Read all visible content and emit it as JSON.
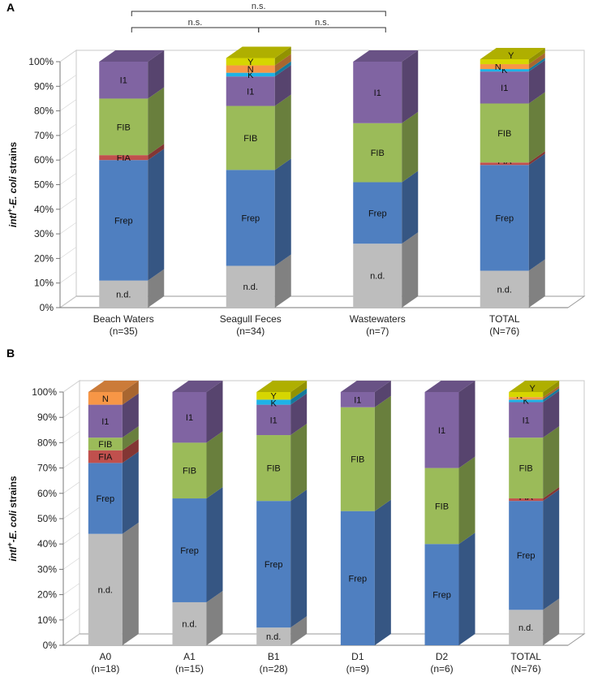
{
  "colors": {
    "n.d.": "#bdbdbd",
    "Frep": "#4f7fc0",
    "FIA": "#c0504d",
    "FIB": "#9bbb59",
    "I1": "#8064a2",
    "K": "#1fb2e6",
    "N": "#f79646",
    "Y": "#d6d600"
  },
  "chart_data": [
    {
      "type": "bar",
      "stacked": true,
      "panel": "A",
      "ylabel_italic_prefix": "intI",
      "ylabel_rest": "+-E. coli strains",
      "ylabel_sup": "+",
      "ylabel_ecoli": "E. coli",
      "ylabel_tail": " strains",
      "ylim": [
        0,
        100
      ],
      "yticks": [
        "0%",
        "10%",
        "20%",
        "30%",
        "40%",
        "50%",
        "60%",
        "70%",
        "80%",
        "90%",
        "100%"
      ],
      "categories": [
        {
          "name": "Beach Waters",
          "n": "(n=35)"
        },
        {
          "name": "Seagull Feces",
          "n": "(n=34)"
        },
        {
          "name": "Wastewaters",
          "n": "(n=7)"
        },
        {
          "name": "TOTAL",
          "n": "(N=76)"
        }
      ],
      "series": [
        {
          "name": "n.d.",
          "values": [
            11,
            17,
            26,
            15
          ]
        },
        {
          "name": "Frep",
          "values": [
            49,
            39,
            25,
            43
          ]
        },
        {
          "name": "FIA",
          "values": [
            2,
            0,
            0,
            1
          ]
        },
        {
          "name": "FIB",
          "values": [
            23,
            26,
            24,
            24
          ]
        },
        {
          "name": "I1",
          "values": [
            15,
            12,
            25,
            13
          ]
        },
        {
          "name": "K",
          "values": [
            0,
            1.5,
            0,
            1
          ]
        },
        {
          "name": "N",
          "values": [
            0,
            3,
            0,
            2
          ]
        },
        {
          "name": "Y",
          "values": [
            0,
            3,
            0,
            2
          ]
        }
      ],
      "significance": [
        {
          "from": 0,
          "to": 2,
          "label": "n.s.",
          "level": 2
        },
        {
          "from": 0,
          "to": 1,
          "label": "n.s.",
          "level": 1
        },
        {
          "from": 1,
          "to": 2,
          "label": "n.s.",
          "level": 1
        }
      ]
    },
    {
      "type": "bar",
      "stacked": true,
      "panel": "B",
      "ylim": [
        0,
        100
      ],
      "yticks": [
        "0%",
        "10%",
        "20%",
        "30%",
        "40%",
        "50%",
        "60%",
        "70%",
        "80%",
        "90%",
        "100%"
      ],
      "categories": [
        {
          "name": "A0",
          "n": "(n=18)"
        },
        {
          "name": "A1",
          "n": "(n=15)"
        },
        {
          "name": "B1",
          "n": "(n=28)"
        },
        {
          "name": "D1",
          "n": "(n=9)"
        },
        {
          "name": "D2",
          "n": "(n=6)"
        },
        {
          "name": "TOTAL",
          "n": "(N=76)"
        }
      ],
      "series": [
        {
          "name": "n.d.",
          "values": [
            44,
            17,
            7,
            0,
            0,
            14
          ]
        },
        {
          "name": "Frep",
          "values": [
            28,
            41,
            50,
            53,
            40,
            43
          ]
        },
        {
          "name": "FIA",
          "values": [
            5,
            0,
            0,
            0,
            0,
            1
          ]
        },
        {
          "name": "FIB",
          "values": [
            5,
            22,
            26,
            41,
            30,
            24
          ]
        },
        {
          "name": "I1",
          "values": [
            13,
            20,
            12,
            6,
            30,
            14
          ]
        },
        {
          "name": "K",
          "values": [
            0,
            0,
            2,
            0,
            0,
            1
          ]
        },
        {
          "name": "N",
          "values": [
            5,
            0,
            0,
            0,
            0,
            1
          ]
        },
        {
          "name": "Y",
          "values": [
            0,
            0,
            3,
            0,
            0,
            2
          ]
        }
      ]
    }
  ]
}
